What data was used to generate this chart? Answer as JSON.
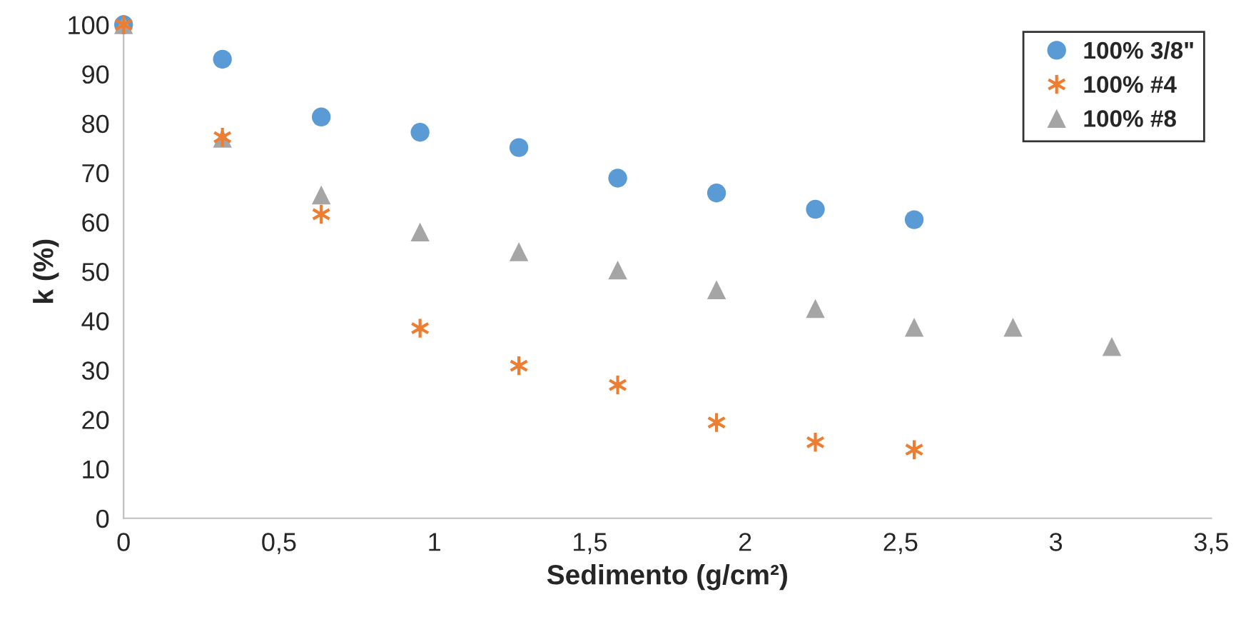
{
  "chart_data": {
    "type": "scatter",
    "xlabel": "Sedimento (g/cm²)",
    "ylabel": "k (%)",
    "x": [
      0,
      0.318,
      0.636,
      0.954,
      1.272,
      1.59,
      1.908,
      2.226,
      2.544,
      2.862,
      3.18
    ],
    "series": [
      {
        "name": "100% 3/8\"",
        "color": "#5b9bd5",
        "marker": "circle",
        "values": [
          100,
          93,
          81.3,
          78.2,
          75.1,
          68.9,
          65.9,
          62.6,
          60.5,
          null,
          null
        ]
      },
      {
        "name": "100% #4",
        "color": "#ed7d31",
        "marker": "cross",
        "values": [
          100,
          77.2,
          61.6,
          38.5,
          30.9,
          27,
          19.4,
          15.4,
          13.9,
          null,
          null
        ]
      },
      {
        "name": "100% #8",
        "color": "#a5a5a5",
        "marker": "triangle",
        "values": [
          100,
          77,
          65.5,
          58,
          54,
          50.3,
          46.3,
          42.5,
          38.7,
          38.7,
          34.8
        ]
      }
    ],
    "xlim": [
      0,
      3.5
    ],
    "xticks": [
      0,
      {
        "value": 0.5,
        "label": "0,5"
      },
      1,
      {
        "value": 1.5,
        "label": "1,5"
      },
      2,
      {
        "value": 2.5,
        "label": "2,5"
      },
      3,
      {
        "value": 3.5,
        "label": "3,5"
      }
    ],
    "ylim": [
      0,
      100
    ],
    "yticks": [
      0,
      10,
      20,
      30,
      40,
      50,
      60,
      70,
      80,
      90,
      100
    ],
    "legend": "top right"
  }
}
